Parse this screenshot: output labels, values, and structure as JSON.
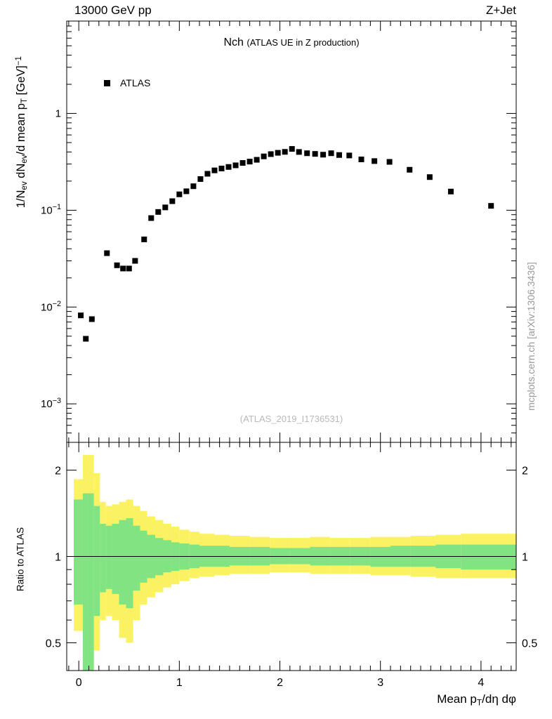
{
  "header": {
    "left_title": "13000 GeV pp",
    "right_title": "Z+Jet"
  },
  "plot": {
    "title": "Nch",
    "subtitle": "(ATLAS UE in Z production)"
  },
  "legend": {
    "entries": [
      {
        "label": "ATLAS",
        "marker": "filled-square",
        "color": "#000000"
      }
    ]
  },
  "watermark": "(ATLAS_2019_I1736531)",
  "credit": "mcplots.cern.ch [arXiv:1306.3436]",
  "colors": {
    "band_outer": "#fbf263",
    "band_inner": "#82e382",
    "marker": "#000000",
    "watermark": "#b9b9b9",
    "credit": "#999999"
  },
  "chart_data": {
    "type": "scatter",
    "title": "Nch (ATLAS UE in Z production)",
    "xlabel": "Mean p_{T}/dη dφ",
    "ylabel": "1/N_{ev} dN_{ev}/d mean p_{T}  [GeV]^{−1}",
    "xlim": [
      -0.12,
      4.35
    ],
    "x_major_ticks": [
      0,
      1,
      2,
      3,
      4
    ],
    "x_tick_labels": [
      "0",
      "1",
      "2",
      "3",
      "4"
    ],
    "x_minor_step": 0.1,
    "yscale": "log",
    "ylim_main": [
      0.0004,
      9
    ],
    "y_ticks": [
      {
        "v": 1,
        "label": "1"
      },
      {
        "v": 0.1,
        "label": "10^{−1}"
      },
      {
        "v": 0.01,
        "label": "10^{−2}"
      },
      {
        "v": 0.001,
        "label": "10^{−3}"
      }
    ],
    "legend_position": "top-left-inside",
    "grid": false,
    "series": [
      {
        "name": "ATLAS",
        "marker": "filled-square",
        "color": "#000000",
        "points": [
          [
            0.02,
            0.0082
          ],
          [
            0.07,
            0.0047
          ],
          [
            0.13,
            0.0075
          ],
          [
            0.28,
            0.036
          ],
          [
            0.38,
            0.027
          ],
          [
            0.44,
            0.025
          ],
          [
            0.5,
            0.025
          ],
          [
            0.56,
            0.03
          ],
          [
            0.65,
            0.05
          ],
          [
            0.72,
            0.083
          ],
          [
            0.79,
            0.096
          ],
          [
            0.86,
            0.107
          ],
          [
            0.93,
            0.124
          ],
          [
            1.0,
            0.146
          ],
          [
            1.07,
            0.157
          ],
          [
            1.14,
            0.177
          ],
          [
            1.21,
            0.21
          ],
          [
            1.28,
            0.238
          ],
          [
            1.35,
            0.258
          ],
          [
            1.42,
            0.27
          ],
          [
            1.49,
            0.28
          ],
          [
            1.56,
            0.291
          ],
          [
            1.63,
            0.308
          ],
          [
            1.7,
            0.318
          ],
          [
            1.77,
            0.332
          ],
          [
            1.84,
            0.36
          ],
          [
            1.91,
            0.38
          ],
          [
            1.98,
            0.392
          ],
          [
            2.05,
            0.401
          ],
          [
            2.12,
            0.43
          ],
          [
            2.19,
            0.4
          ],
          [
            2.27,
            0.388
          ],
          [
            2.35,
            0.382
          ],
          [
            2.43,
            0.375
          ],
          [
            2.51,
            0.388
          ],
          [
            2.59,
            0.372
          ],
          [
            2.69,
            0.368
          ],
          [
            2.81,
            0.335
          ],
          [
            2.94,
            0.322
          ],
          [
            3.09,
            0.316
          ],
          [
            3.29,
            0.262
          ],
          [
            3.49,
            0.22
          ],
          [
            3.7,
            0.156
          ],
          [
            4.1,
            0.111
          ]
        ]
      }
    ],
    "ratio": {
      "ylabel": "Ratio to ATLAS",
      "yscale": "log",
      "ylim": [
        0.4,
        2.5
      ],
      "reference_line": 1,
      "y_ticks": [
        {
          "v": 0.5,
          "label": "0.5"
        },
        {
          "v": 1,
          "label": "1"
        },
        {
          "v": 2,
          "label": "2"
        }
      ],
      "y_minor_ticks": [
        0.4,
        0.6,
        0.7,
        0.8,
        0.9
      ],
      "bands": [
        {
          "name": "outer-uncertainty",
          "color": "#fbf263",
          "steps": [
            [
              -0.05,
              0.04,
              0.55,
              1.86
            ],
            [
              0.04,
              0.09,
              0.36,
              2.26
            ],
            [
              0.09,
              0.15,
              0.36,
              2.26
            ],
            [
              0.15,
              0.21,
              0.47,
              1.95
            ],
            [
              0.21,
              0.27,
              0.6,
              1.55
            ],
            [
              0.27,
              0.33,
              0.62,
              1.5
            ],
            [
              0.33,
              0.4,
              0.6,
              1.52
            ],
            [
              0.4,
              0.47,
              0.52,
              1.55
            ],
            [
              0.47,
              0.54,
              0.5,
              1.58
            ],
            [
              0.54,
              0.61,
              0.6,
              1.5
            ],
            [
              0.61,
              0.68,
              0.68,
              1.44
            ],
            [
              0.68,
              0.76,
              0.72,
              1.38
            ],
            [
              0.76,
              0.84,
              0.75,
              1.34
            ],
            [
              0.84,
              0.92,
              0.78,
              1.3
            ],
            [
              0.92,
              1.0,
              0.8,
              1.27
            ],
            [
              1.0,
              1.1,
              0.82,
              1.24
            ],
            [
              1.1,
              1.2,
              0.84,
              1.22
            ],
            [
              1.2,
              1.35,
              0.85,
              1.2
            ],
            [
              1.35,
              1.5,
              0.86,
              1.19
            ],
            [
              1.5,
              1.7,
              0.87,
              1.18
            ],
            [
              1.7,
              1.9,
              0.87,
              1.17
            ],
            [
              1.9,
              2.1,
              0.88,
              1.16
            ],
            [
              2.1,
              2.3,
              0.88,
              1.16
            ],
            [
              2.3,
              2.5,
              0.87,
              1.17
            ],
            [
              2.5,
              2.7,
              0.87,
              1.16
            ],
            [
              2.7,
              2.9,
              0.87,
              1.16
            ],
            [
              2.9,
              3.1,
              0.86,
              1.17
            ],
            [
              3.1,
              3.3,
              0.86,
              1.17
            ],
            [
              3.3,
              3.55,
              0.85,
              1.18
            ],
            [
              3.55,
              3.8,
              0.84,
              1.19
            ],
            [
              3.8,
              4.35,
              0.84,
              1.2
            ]
          ]
        },
        {
          "name": "inner-uncertainty",
          "color": "#82e382",
          "steps": [
            [
              -0.05,
              0.04,
              0.68,
              1.58
            ],
            [
              0.04,
              0.09,
              0.37,
              1.66
            ],
            [
              0.09,
              0.15,
              0.37,
              1.66
            ],
            [
              0.15,
              0.21,
              0.62,
              1.5
            ],
            [
              0.21,
              0.27,
              0.75,
              1.3
            ],
            [
              0.27,
              0.33,
              0.77,
              1.28
            ],
            [
              0.33,
              0.4,
              0.74,
              1.3
            ],
            [
              0.4,
              0.47,
              0.68,
              1.34
            ],
            [
              0.47,
              0.54,
              0.66,
              1.36
            ],
            [
              0.54,
              0.61,
              0.76,
              1.28
            ],
            [
              0.61,
              0.68,
              0.81,
              1.23
            ],
            [
              0.68,
              0.76,
              0.84,
              1.19
            ],
            [
              0.76,
              0.84,
              0.86,
              1.16
            ],
            [
              0.84,
              0.92,
              0.88,
              1.14
            ],
            [
              0.92,
              1.0,
              0.89,
              1.12
            ],
            [
              1.0,
              1.1,
              0.9,
              1.11
            ],
            [
              1.1,
              1.2,
              0.91,
              1.1
            ],
            [
              1.2,
              1.35,
              0.92,
              1.09
            ],
            [
              1.35,
              1.5,
              0.92,
              1.09
            ],
            [
              1.5,
              1.7,
              0.93,
              1.08
            ],
            [
              1.7,
              1.9,
              0.93,
              1.08
            ],
            [
              1.9,
              2.1,
              0.94,
              1.07
            ],
            [
              2.1,
              2.3,
              0.94,
              1.07
            ],
            [
              2.3,
              2.5,
              0.93,
              1.08
            ],
            [
              2.5,
              2.7,
              0.93,
              1.08
            ],
            [
              2.7,
              2.9,
              0.93,
              1.08
            ],
            [
              2.9,
              3.1,
              0.92,
              1.08
            ],
            [
              3.1,
              3.3,
              0.92,
              1.09
            ],
            [
              3.3,
              3.55,
              0.92,
              1.09
            ],
            [
              3.55,
              3.8,
              0.91,
              1.1
            ],
            [
              3.8,
              4.35,
              0.9,
              1.1
            ]
          ]
        }
      ]
    }
  }
}
